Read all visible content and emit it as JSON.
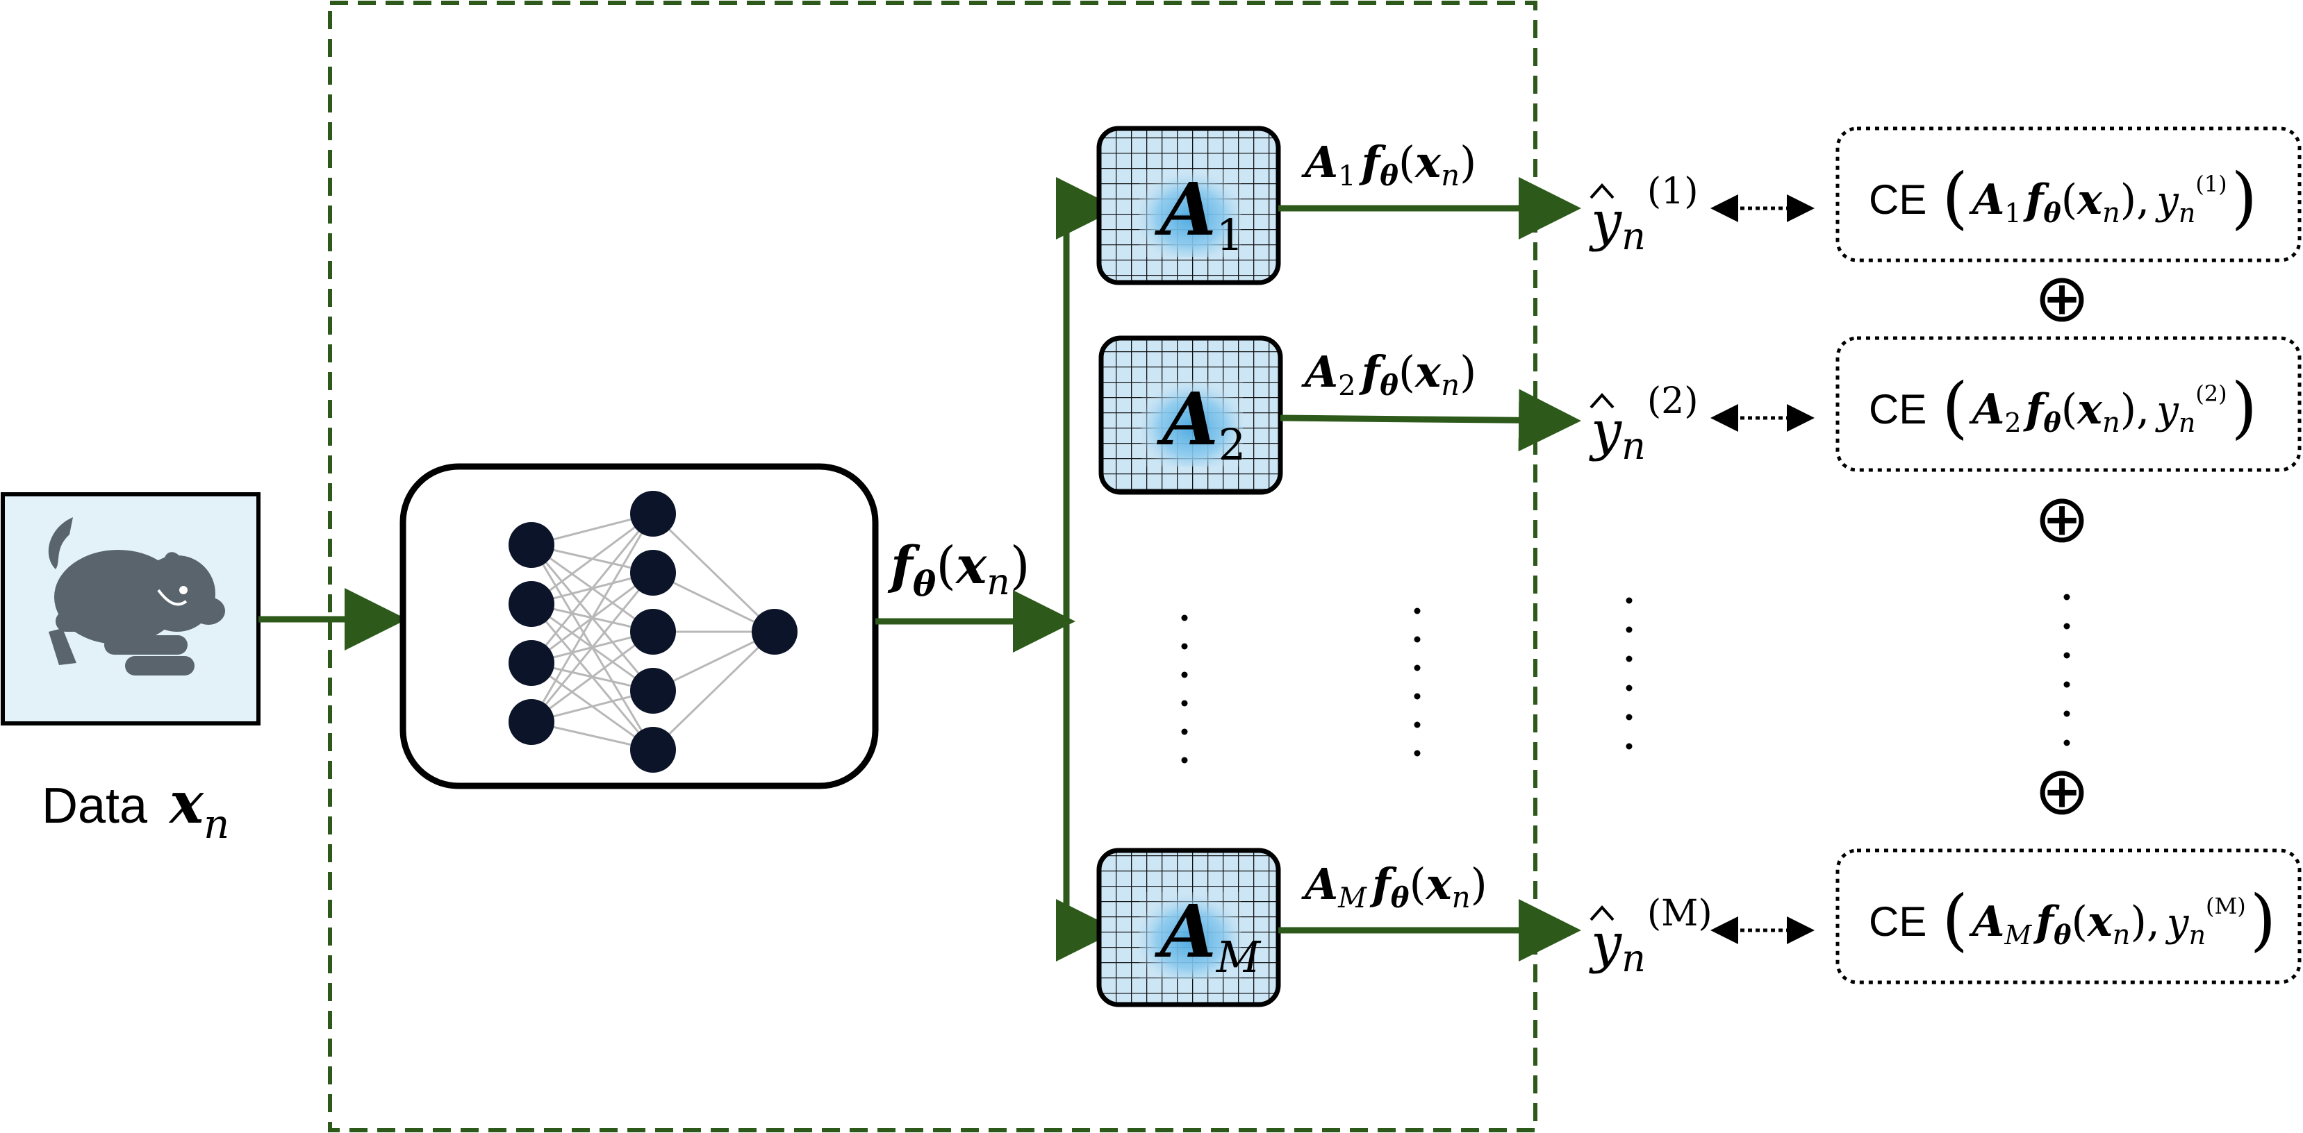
{
  "input": {
    "label_prefix": "Data",
    "var_base": "x",
    "var_sub": "n"
  },
  "feature": {
    "func": "f",
    "func_sub": "θ",
    "arg_base": "x",
    "arg_sub": "n"
  },
  "heads": [
    {
      "matrix_base": "A",
      "matrix_sub": "1",
      "output_base": "y",
      "output_sub": "n",
      "output_sup": "(1)",
      "loss_prefix": "CE"
    },
    {
      "matrix_base": "A",
      "matrix_sub": "2",
      "output_base": "y",
      "output_sub": "n",
      "output_sup": "(2)",
      "loss_prefix": "CE"
    },
    {
      "matrix_base": "A",
      "matrix_sub": "M",
      "output_base": "y",
      "output_sub": "n",
      "output_sup": "(M)",
      "loss_prefix": "CE"
    }
  ],
  "sum_symbol": "⊕",
  "colors": {
    "arrow": "#2d5a1b",
    "dashed_box": "#2d5a1b",
    "matrix_fill": "#cde6f5",
    "matrix_glow": "#4aa8e0",
    "input_fill": "#e3f2f9",
    "dog": "#59646c",
    "node": "#0b1428",
    "edge": "#b8b8b8"
  },
  "icons": {
    "input_image": "dog-icon",
    "network": "neural-network-icon"
  }
}
